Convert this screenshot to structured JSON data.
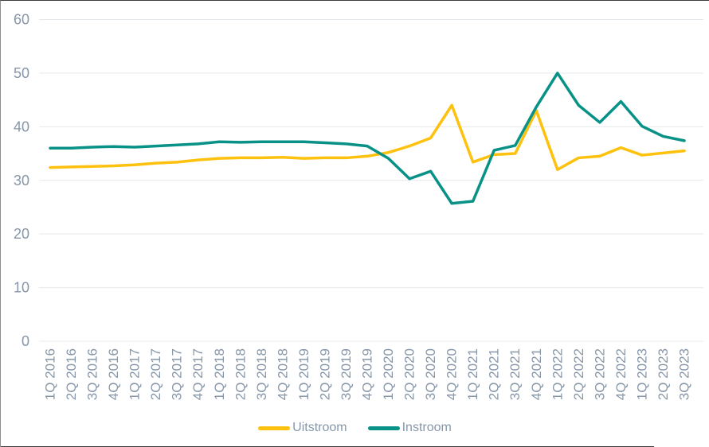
{
  "chart_data": {
    "type": "line",
    "title": "",
    "xlabel": "",
    "ylabel": "",
    "grid": true,
    "legend_position": "bottom",
    "ylim": [
      0,
      60
    ],
    "yticks": [
      0,
      10,
      20,
      30,
      40,
      50,
      60
    ],
    "categories": [
      "1Q 2016",
      "2Q 2016",
      "3Q 2016",
      "4Q 2016",
      "1Q 2017",
      "2Q 2017",
      "3Q 2017",
      "4Q 2017",
      "1Q 2018",
      "2Q 2018",
      "3Q 2018",
      "4Q 2018",
      "1Q 2019",
      "2Q 2019",
      "3Q 2019",
      "4Q 2019",
      "1Q 2020",
      "2Q 2020",
      "3Q 2020",
      "4Q 2020",
      "1Q 2021",
      "2Q 2021",
      "3Q 2021",
      "4Q 2021",
      "1Q 2022",
      "2Q 2022",
      "3Q 2022",
      "4Q 2022",
      "1Q 2023",
      "2Q 2023",
      "3Q 2023"
    ],
    "series": [
      {
        "name": "Uitstroom",
        "color": "#FEC10D",
        "values": [
          32.4,
          32.5,
          32.6,
          32.7,
          32.9,
          33.2,
          33.4,
          33.8,
          34.1,
          34.2,
          34.2,
          34.3,
          34.1,
          34.2,
          34.2,
          34.5,
          35.2,
          36.4,
          37.9,
          44,
          33.4,
          34.8,
          35,
          43,
          32,
          34.2,
          34.5,
          36.1,
          34.7,
          35.1,
          35.5
        ]
      },
      {
        "name": "Instroom",
        "color": "#089287",
        "values": [
          36,
          36,
          36.2,
          36.3,
          36.2,
          36.4,
          36.6,
          36.8,
          37.2,
          37.1,
          37.2,
          37.2,
          37.2,
          37,
          36.8,
          36.4,
          34.1,
          30.3,
          31.7,
          25.7,
          26.1,
          35.6,
          36.5,
          43.7,
          50,
          44,
          40.8,
          44.7,
          40.1,
          38.2,
          37.4
        ]
      }
    ]
  },
  "colors": {
    "axis_label": "#8797A9",
    "gridline": "#E4E9ED",
    "window_border": "#3D3D3D"
  }
}
